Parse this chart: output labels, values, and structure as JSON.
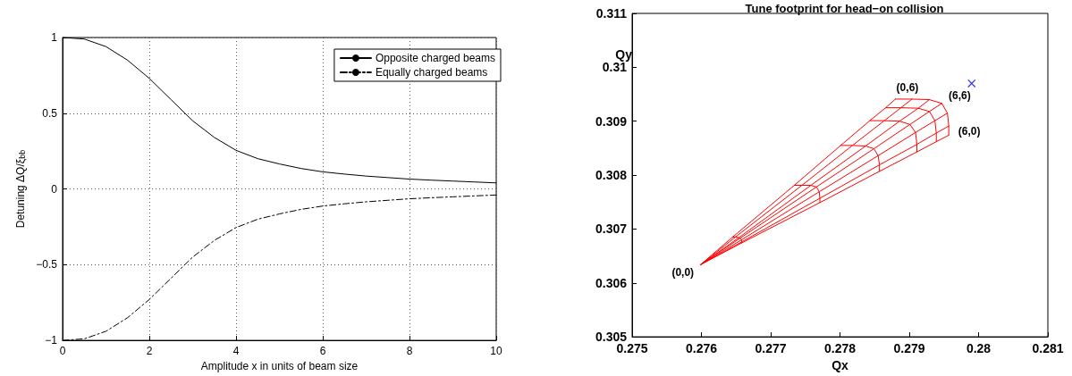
{
  "chart_data": [
    {
      "type": "line",
      "xlabel": "Amplitude x in units of beam size",
      "ylabel": "Detuning ΔQ/ξ$_{bb}$",
      "xlim": [
        0,
        10
      ],
      "xticks": [
        0,
        2,
        4,
        6,
        8,
        10
      ],
      "ylim": [
        -1,
        1
      ],
      "yticks": [
        -1,
        -0.5,
        0,
        0.5,
        1
      ],
      "grid": true,
      "legend": "top right",
      "marker": "none",
      "x": [
        0,
        0.5,
        1,
        1.5,
        2,
        2.5,
        3,
        3.5,
        4,
        4.5,
        5,
        5.5,
        6,
        6.5,
        7,
        7.5,
        8,
        8.5,
        9,
        9.5,
        10
      ],
      "series": [
        {
          "name": "Opposite charged beams",
          "color": "#000000",
          "line_style": "solid",
          "values": [
            1,
            0.99,
            0.94,
            0.85,
            0.73,
            0.59,
            0.45,
            0.34,
            0.255,
            0.2,
            0.165,
            0.135,
            0.113,
            0.098,
            0.085,
            0.075,
            0.065,
            0.058,
            0.052,
            0.046,
            0.04
          ]
        },
        {
          "name": "Equally charged beams",
          "color": "#000000",
          "line_style": "dashed",
          "values": [
            -1,
            -0.99,
            -0.94,
            -0.85,
            -0.73,
            -0.59,
            -0.45,
            -0.34,
            -0.255,
            -0.2,
            -0.165,
            -0.135,
            -0.113,
            -0.098,
            -0.085,
            -0.075,
            -0.065,
            -0.058,
            -0.052,
            -0.046,
            -0.04
          ]
        }
      ]
    },
    {
      "type": "line",
      "title": "Tune footprint for head−on collision",
      "xlabel": "Qx",
      "ylabel": "Qy",
      "xlim": [
        0.275,
        0.281
      ],
      "xticks": [
        0.275,
        0.276,
        0.277,
        0.278,
        0.279,
        0.28,
        0.281
      ],
      "ylim": [
        0.305,
        0.311
      ],
      "yticks": [
        0.305,
        0.306,
        0.307,
        0.308,
        0.309,
        0.31,
        0.311
      ],
      "grid": false,
      "legend": false,
      "marker": "none",
      "line_style": "solid",
      "annotations": [
        {
          "text": "(0,0)",
          "x": 0.27599,
          "y": 0.30634
        },
        {
          "text": "(0,6)",
          "x": 0.2788,
          "y": 0.30941
        },
        {
          "text": "(6,6)",
          "x": 0.27947,
          "y": 0.30933
        },
        {
          "text": "(6,0)",
          "x": 0.27957,
          "y": 0.30874
        }
      ],
      "series": [
        {
          "color": "#ff0000",
          "x": [
            0.27599,
            0.27658,
            0.27771,
            0.27857,
            0.27911,
            0.27939,
            0.27957
          ],
          "values": [
            0.30634,
            0.30674,
            0.30749,
            0.30807,
            0.30843,
            0.30862,
            0.30874
          ]
        },
        {
          "color": "#ff0000",
          "x": [
            0.27599,
            0.27658,
            0.27771,
            0.27857,
            0.27911,
            0.27939,
            0.27957
          ],
          "values": [
            0.30634,
            0.30676,
            0.30757,
            0.30819,
            0.30857,
            0.30878,
            0.30891
          ]
        },
        {
          "color": "#ff0000",
          "x": [
            0.27599,
            0.27658,
            0.2777,
            0.27855,
            0.27909,
            0.27937,
            0.27955
          ],
          "values": [
            0.30634,
            0.3068,
            0.30769,
            0.30836,
            0.30879,
            0.30901,
            0.30915
          ]
        },
        {
          "color": "#ff0000",
          "x": [
            0.27599,
            0.27656,
            0.27766,
            0.27849,
            0.27901,
            0.27929,
            0.27947
          ],
          "values": [
            0.30634,
            0.30683,
            0.30778,
            0.30849,
            0.30894,
            0.30918,
            0.30933
          ]
        },
        {
          "color": "#ff0000",
          "x": [
            0.27599,
            0.27654,
            0.27758,
            0.27837,
            0.27886,
            0.27913,
            0.27929
          ],
          "values": [
            0.30634,
            0.30684,
            0.30781,
            0.30854,
            0.309,
            0.30924,
            0.3094
          ]
        },
        {
          "color": "#ff0000",
          "x": [
            0.27599,
            0.27649,
            0.27745,
            0.27818,
            0.27864,
            0.27888,
            0.27904
          ],
          "values": [
            0.30634,
            0.30685,
            0.30781,
            0.30855,
            0.30901,
            0.30925,
            0.30941
          ]
        },
        {
          "color": "#ff0000",
          "x": [
            0.27599,
            0.27645,
            0.27734,
            0.27801,
            0.27843,
            0.27866,
            0.2788
          ],
          "values": [
            0.30634,
            0.30685,
            0.30781,
            0.30855,
            0.30901,
            0.30925,
            0.30941
          ]
        },
        {
          "color": "#ff0000",
          "x": [
            0.27658,
            0.27658,
            0.27658,
            0.27656,
            0.27654,
            0.27649,
            0.27645
          ],
          "values": [
            0.30674,
            0.30676,
            0.3068,
            0.30683,
            0.30684,
            0.30685,
            0.30685
          ]
        },
        {
          "color": "#ff0000",
          "x": [
            0.27771,
            0.27771,
            0.2777,
            0.27766,
            0.27758,
            0.27745,
            0.27734
          ],
          "values": [
            0.30749,
            0.30757,
            0.30769,
            0.30778,
            0.30781,
            0.30781,
            0.30781
          ]
        },
        {
          "color": "#ff0000",
          "x": [
            0.27857,
            0.27857,
            0.27855,
            0.27849,
            0.27837,
            0.27818,
            0.27801
          ],
          "values": [
            0.30807,
            0.30819,
            0.30836,
            0.30849,
            0.30854,
            0.30855,
            0.30855
          ]
        },
        {
          "color": "#ff0000",
          "x": [
            0.27911,
            0.27911,
            0.27909,
            0.27901,
            0.27886,
            0.27864,
            0.27843
          ],
          "values": [
            0.30843,
            0.30857,
            0.30879,
            0.30894,
            0.309,
            0.30901,
            0.30901
          ]
        },
        {
          "color": "#ff0000",
          "x": [
            0.27939,
            0.27939,
            0.27937,
            0.27929,
            0.27913,
            0.27888,
            0.27866
          ],
          "values": [
            0.30862,
            0.30878,
            0.30901,
            0.30918,
            0.30924,
            0.30925,
            0.30925
          ]
        },
        {
          "color": "#ff0000",
          "x": [
            0.27957,
            0.27957,
            0.27955,
            0.27947,
            0.27929,
            0.27904,
            0.2788
          ],
          "values": [
            0.30874,
            0.30891,
            0.30915,
            0.30933,
            0.3094,
            0.30941,
            0.30941
          ]
        },
        {
          "type": "scatter",
          "marker": "cross",
          "color": "#0000ff",
          "x": [
            0.2799
          ],
          "values": [
            0.3097
          ]
        }
      ]
    }
  ]
}
